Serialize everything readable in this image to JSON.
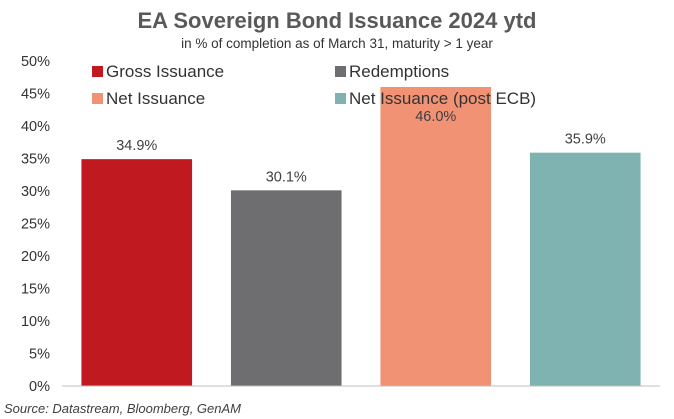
{
  "chart_data": {
    "type": "bar",
    "title": "EA Sovereign Bond Issuance 2024 ytd",
    "subtitle": "in % of completion as of March 31, maturity > 1 year",
    "categories": [
      "Gross Issuance",
      "Redemptions",
      "Net Issuance",
      "Net Issuance (post ECB)"
    ],
    "values": [
      34.9,
      30.1,
      46.0,
      35.9
    ],
    "data_labels": [
      "34.9%",
      "30.1%",
      "46.0%",
      "35.9%"
    ],
    "colors": [
      "#C0191F",
      "#6E6E70",
      "#F09273",
      "#7EB3B1"
    ],
    "ylim": [
      0,
      50
    ],
    "yticks": [
      "0%",
      "5%",
      "10%",
      "15%",
      "20%",
      "25%",
      "30%",
      "35%",
      "40%",
      "45%",
      "50%"
    ],
    "ytick_values": [
      0,
      5,
      10,
      15,
      20,
      25,
      30,
      35,
      40,
      45,
      50
    ],
    "legend": {
      "placement": "top-left, two columns, overlapping plot",
      "entries": [
        "Gross Issuance",
        "Redemptions",
        "Net Issuance",
        "Net Issuance (post ECB)"
      ]
    },
    "grid": false,
    "source": "Source: Datastream, Bloomberg, GenAM"
  }
}
